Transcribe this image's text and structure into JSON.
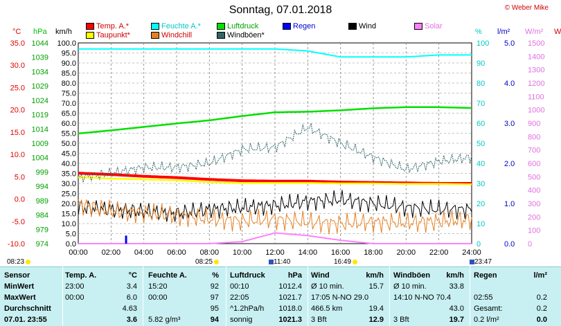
{
  "title": "Sonntag, 07.01.2018",
  "credit": "© Weber Mike",
  "units": {
    "temp": "°C",
    "hpa": "hPa",
    "kmh": "km/h",
    "pct": "%",
    "rain": "l/m²",
    "solar": "W/m²",
    "w_cut": "W"
  },
  "legend": [
    {
      "label": "Temp. A.*",
      "color": "#ff0000"
    },
    {
      "label": "Taupunkt*",
      "color": "#ffff00"
    },
    {
      "label": "Feuchte A.*",
      "color": "#00ffff"
    },
    {
      "label": "Windchill",
      "color": "#e88020"
    },
    {
      "label": "Luftdruck",
      "color": "#00e000"
    },
    {
      "label": "Windböen*",
      "color": "#336666"
    },
    {
      "label": "Regen",
      "color": "#0000ff"
    },
    {
      "label": "Wind",
      "color": "#000000"
    },
    {
      "label": "Solar",
      "color": "#ff80ff"
    }
  ],
  "axes": {
    "temp": [
      "35.0",
      "30.0",
      "25.0",
      "20.0",
      "15.0",
      "10.0",
      "5.0",
      "0.0",
      "-5.0",
      "-10.0"
    ],
    "hpa": [
      "1044",
      "1039",
      "1034",
      "1029",
      "1024",
      "1019",
      "1014",
      "1009",
      "1004",
      "999",
      "994",
      "989",
      "984",
      "979",
      "974"
    ],
    "kmh": [
      "100.0",
      "95.0",
      "90.0",
      "85.0",
      "80.0",
      "75.0",
      "70.0",
      "65.0",
      "60.0",
      "55.0",
      "50.0",
      "45.0",
      "40.0",
      "35.0",
      "30.0",
      "25.0",
      "20.0",
      "15.0",
      "10.0",
      "5.0",
      "0.0"
    ],
    "pct": [
      "100",
      "90",
      "80",
      "70",
      "60",
      "50",
      "40",
      "30",
      "20",
      "10",
      "0"
    ],
    "rain": [
      "5.0",
      "4.0",
      "3.0",
      "2.0",
      "1.0",
      "0.0"
    ],
    "solar": [
      "1500",
      "1400",
      "1300",
      "1200",
      "1100",
      "1000",
      "900",
      "800",
      "700",
      "600",
      "500",
      "400",
      "300",
      "200",
      "100",
      "0"
    ],
    "time": [
      "00:00",
      "02:00",
      "04:00",
      "06:00",
      "08:00",
      "10:00",
      "12:00",
      "14:00",
      "16:00",
      "18:00",
      "20:00",
      "22:00",
      "24:00"
    ]
  },
  "sun_events": [
    "08:23",
    "08:25",
    "11:40",
    "16:49",
    "23:47"
  ],
  "chart_data": {
    "type": "line",
    "title": "Sonntag, 07.01.2018",
    "x": [
      "00:00",
      "02:00",
      "04:00",
      "06:00",
      "08:00",
      "10:00",
      "12:00",
      "14:00",
      "16:00",
      "18:00",
      "20:00",
      "22:00",
      "24:00"
    ],
    "series": [
      {
        "name": "Temp. A.*",
        "axis": "°C",
        "values": [
          5.8,
          5.5,
          5.1,
          4.8,
          4.4,
          4.1,
          4.0,
          4.0,
          3.8,
          3.7,
          3.6,
          3.5,
          3.5
        ]
      },
      {
        "name": "Taupunkt*",
        "axis": "°C",
        "values": [
          4.9,
          4.6,
          4.4,
          4.2,
          3.8,
          3.6,
          3.6,
          3.6,
          3.5,
          3.5,
          3.4,
          3.4,
          3.3
        ]
      },
      {
        "name": "Feuchte A.*",
        "axis": "%",
        "values": [
          97,
          97,
          97,
          97,
          97,
          97,
          97,
          96,
          93,
          93,
          93,
          94,
          94
        ]
      },
      {
        "name": "Luftdruck",
        "axis": "hPa",
        "values": [
          1012.4,
          1013.5,
          1014.7,
          1015.9,
          1017.0,
          1018.5,
          1019.8,
          1020.0,
          1020.5,
          1021.2,
          1021.6,
          1021.6,
          1021.3
        ]
      },
      {
        "name": "Wind",
        "axis": "km/h",
        "values": [
          18,
          17,
          16,
          15,
          17,
          18,
          19,
          21,
          22,
          20,
          18,
          17,
          17
        ]
      },
      {
        "name": "Windböen*",
        "axis": "km/h",
        "values": [
          33,
          35,
          38,
          38,
          40,
          47,
          48,
          58,
          50,
          43,
          37,
          41,
          43
        ]
      },
      {
        "name": "Windchill",
        "axis": "°C",
        "values": [
          -1.2,
          -2.6,
          -3.2,
          -3.6,
          -4.5,
          -4.9,
          -4.5,
          -5.2,
          -5.5,
          -5.2,
          -5.3,
          -5.0,
          -4.6
        ]
      },
      {
        "name": "Solar",
        "axis": "W/m²",
        "values": [
          0,
          0,
          0,
          0,
          0,
          15,
          80,
          60,
          25,
          0,
          0,
          0,
          0
        ]
      }
    ],
    "rain_events": [
      {
        "time": "02:55",
        "value": 0.2
      }
    ]
  },
  "table": {
    "headers": [
      "Sensor",
      "Temp. A.",
      "°C",
      "Feuchte A.",
      "%",
      "Luftdruck",
      "hPa",
      "Wind",
      "km/h",
      "Windböen",
      "km/h",
      "Regen",
      "l/m²"
    ],
    "rows": [
      {
        "label": "MinWert",
        "cells": [
          "23:00",
          "3.4",
          "15:20",
          "92",
          "00:10",
          "1012.4",
          "Ø 10 min.",
          "15.7",
          "Ø 10 min.",
          "33.8",
          "",
          ""
        ]
      },
      {
        "label": "MaxWert",
        "cells": [
          "00:00",
          "6.0",
          "00:00",
          "97",
          "22:05",
          "1021.7",
          "17:05   N-NO 29.0",
          "",
          "14:10   N-NO 70.4",
          "",
          "02:55",
          "0.2"
        ]
      },
      {
        "label": "Durchschnitt",
        "cells": [
          "",
          "4.63",
          "",
          "95",
          "^1.2hPa/h",
          "1018.0",
          "466.5 km",
          "19.4",
          "",
          "43.0",
          "Gesamt:",
          "0.2"
        ]
      },
      {
        "label": "07.01. 23:55",
        "cells": [
          "",
          "3.6",
          "5.82 g/m³",
          "94",
          "sonnig",
          "1021.3",
          "3 Bft",
          "12.9",
          "3 Bft",
          "19.7",
          "0.2 l/m²",
          "0.0"
        ]
      }
    ]
  }
}
